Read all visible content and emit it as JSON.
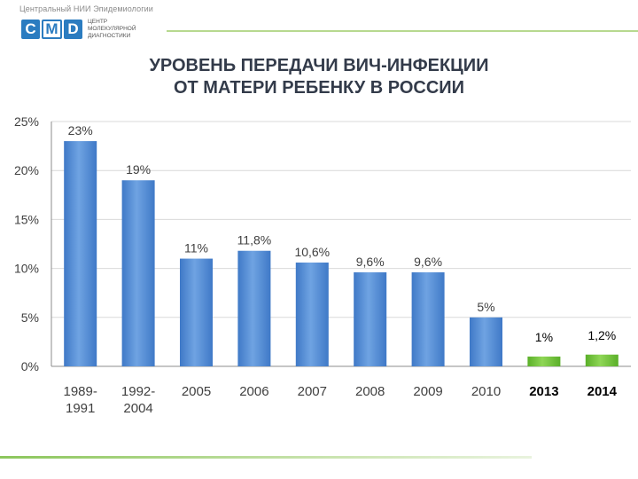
{
  "header": {
    "org_name": "Центральный НИИ Эпидемиологии",
    "logo_letters": [
      "C",
      "M",
      "D"
    ],
    "logo_caption": [
      "ЦЕНТР",
      "МОЛЕКУЛЯРНОЙ",
      "ДИАГНОСТИКИ"
    ]
  },
  "slide": {
    "title_line1": "УРОВЕНЬ ПЕРЕДАЧИ ВИЧ-ИНФЕКЦИИ",
    "title_line2": "ОТ МАТЕРИ РЕБЕНКУ В РОССИИ"
  },
  "colors": {
    "bar_blue": "#3f79c7",
    "bar_blue_light": "#6fa3e2",
    "bar_green": "#5aaf29",
    "bar_green_light": "#8fd656",
    "grid": "#d9d9d9",
    "text": "#404040"
  },
  "chart_data": {
    "type": "bar",
    "title": "УРОВЕНЬ ПЕРЕДАЧИ ВИЧ-ИНФЕКЦИИ ОТ МАТЕРИ РЕБЕНКУ В РОССИИ",
    "categories": [
      [
        "1989-",
        "1991"
      ],
      [
        "1992-",
        "2004"
      ],
      [
        "2005"
      ],
      [
        "2006"
      ],
      [
        "2007"
      ],
      [
        "2008"
      ],
      [
        "2009"
      ],
      [
        "2010"
      ],
      [
        "2013"
      ],
      [
        "2014"
      ]
    ],
    "values": [
      23,
      19,
      11,
      11.8,
      10.6,
      9.6,
      9.6,
      5,
      1,
      1.2
    ],
    "data_labels": [
      "23%",
      "19%",
      "11%",
      "11,8%",
      "10,6%",
      "9,6%",
      "9,6%",
      "5%",
      "1%",
      "1,2%"
    ],
    "highlighted": [
      false,
      false,
      false,
      false,
      false,
      false,
      false,
      false,
      true,
      true
    ],
    "ylim": [
      0,
      25
    ],
    "yticks": [
      0,
      5,
      10,
      15,
      20,
      25
    ],
    "ytick_labels": [
      "0%",
      "5%",
      "10%",
      "15%",
      "20%",
      "25%"
    ],
    "xlabel": "",
    "ylabel": "",
    "grid": true
  }
}
